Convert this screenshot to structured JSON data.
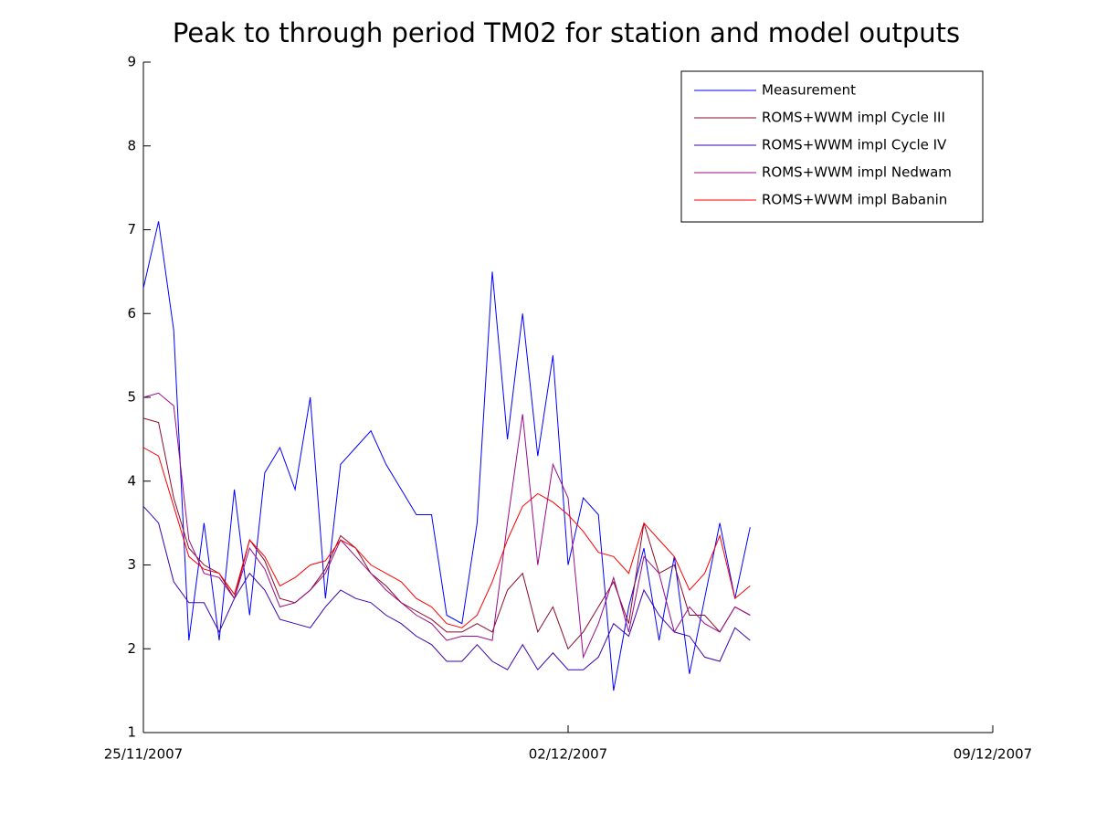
{
  "chart_data": {
    "type": "line",
    "title": "Peak to through period TM02 for station and model outputs",
    "x": [
      733371,
      733371.25,
      733371.5,
      733371.75,
      733372,
      733372.25,
      733372.5,
      733372.75,
      733373,
      733373.25,
      733373.5,
      733373.75,
      733374,
      733374.25,
      733374.5,
      733374.75,
      733375,
      733375.25,
      733375.5,
      733375.75,
      733376,
      733376.25,
      733376.5,
      733376.75,
      733377,
      733377.25,
      733377.5,
      733377.75,
      733378,
      733378.25,
      733378.5,
      733378.75,
      733379,
      733379.25,
      733379.5,
      733379.75,
      733380,
      733380.25,
      733380.5,
      733380.75,
      733381
    ],
    "series": [
      {
        "name": "Measurement",
        "color": "#0000ff",
        "values": [
          6.3,
          7.1,
          5.8,
          2.1,
          3.5,
          2.1,
          3.9,
          2.4,
          4.1,
          4.4,
          3.9,
          5.0,
          2.6,
          4.2,
          4.4,
          4.6,
          4.2,
          3.9,
          3.6,
          3.6,
          2.4,
          2.3,
          3.5,
          6.5,
          4.5,
          6.0,
          4.3,
          5.5,
          3.0,
          3.8,
          3.6,
          1.5,
          2.5,
          3.2,
          2.1,
          3.1,
          1.7,
          2.6,
          3.5,
          2.6,
          3.45
        ]
      },
      {
        "name": "ROMS+WWM impl Cycle III",
        "color": "#8b0a2a",
        "values": [
          4.75,
          4.7,
          3.8,
          3.2,
          3.0,
          2.9,
          2.6,
          3.3,
          3.05,
          2.6,
          2.55,
          2.7,
          2.95,
          3.35,
          3.2,
          2.9,
          2.75,
          2.55,
          2.45,
          2.35,
          2.2,
          2.2,
          2.3,
          2.2,
          2.7,
          2.9,
          2.2,
          2.5,
          2.0,
          2.2,
          2.5,
          2.8,
          2.3,
          3.5,
          2.9,
          3.0,
          2.4,
          2.4,
          2.2,
          2.5,
          2.4
        ]
      },
      {
        "name": "ROMS+WWM impl Cycle IV",
        "color": "#3a00b0",
        "values": [
          3.7,
          3.5,
          2.8,
          2.55,
          2.55,
          2.2,
          2.6,
          2.9,
          2.7,
          2.35,
          2.3,
          2.25,
          2.5,
          2.7,
          2.6,
          2.55,
          2.4,
          2.3,
          2.15,
          2.05,
          1.85,
          1.85,
          2.05,
          1.85,
          1.75,
          2.05,
          1.75,
          1.95,
          1.75,
          1.75,
          1.9,
          2.3,
          2.15,
          2.7,
          2.4,
          2.2,
          2.15,
          1.9,
          1.85,
          2.25,
          2.1
        ]
      },
      {
        "name": "ROMS+WWM impl Nedwam",
        "color": "#9a0a8a",
        "values": [
          5.0,
          5.05,
          4.9,
          3.3,
          2.9,
          2.85,
          2.6,
          3.2,
          2.95,
          2.5,
          2.55,
          2.7,
          2.9,
          3.3,
          3.1,
          2.9,
          2.7,
          2.55,
          2.4,
          2.3,
          2.1,
          2.15,
          2.15,
          2.1,
          3.5,
          4.8,
          3.0,
          4.2,
          3.8,
          1.9,
          2.3,
          2.85,
          2.2,
          3.1,
          2.9,
          2.2,
          2.5,
          2.3,
          2.2,
          2.5,
          2.4
        ]
      },
      {
        "name": "ROMS+WWM impl Babanin",
        "color": "#ff0000",
        "values": [
          4.4,
          4.3,
          3.7,
          3.1,
          2.95,
          2.9,
          2.65,
          3.3,
          3.1,
          2.75,
          2.85,
          3.0,
          3.05,
          3.3,
          3.2,
          3.0,
          2.9,
          2.8,
          2.6,
          2.5,
          2.3,
          2.25,
          2.4,
          2.8,
          3.3,
          3.7,
          3.85,
          3.75,
          3.6,
          3.4,
          3.15,
          3.1,
          2.9,
          3.5,
          3.3,
          3.1,
          2.7,
          2.9,
          3.35,
          2.6,
          2.75
        ]
      }
    ],
    "xlim": [
      733371,
      733385
    ],
    "xticks": [
      {
        "value": 733371,
        "label": "25/11/2007"
      },
      {
        "value": 733378,
        "label": "02/12/2007"
      },
      {
        "value": 733385,
        "label": "09/12/2007"
      }
    ],
    "ylim": [
      1,
      9
    ],
    "yticks": [
      1,
      2,
      3,
      4,
      5,
      6,
      7,
      8,
      9
    ],
    "grid": false,
    "legend": "top-right"
  }
}
